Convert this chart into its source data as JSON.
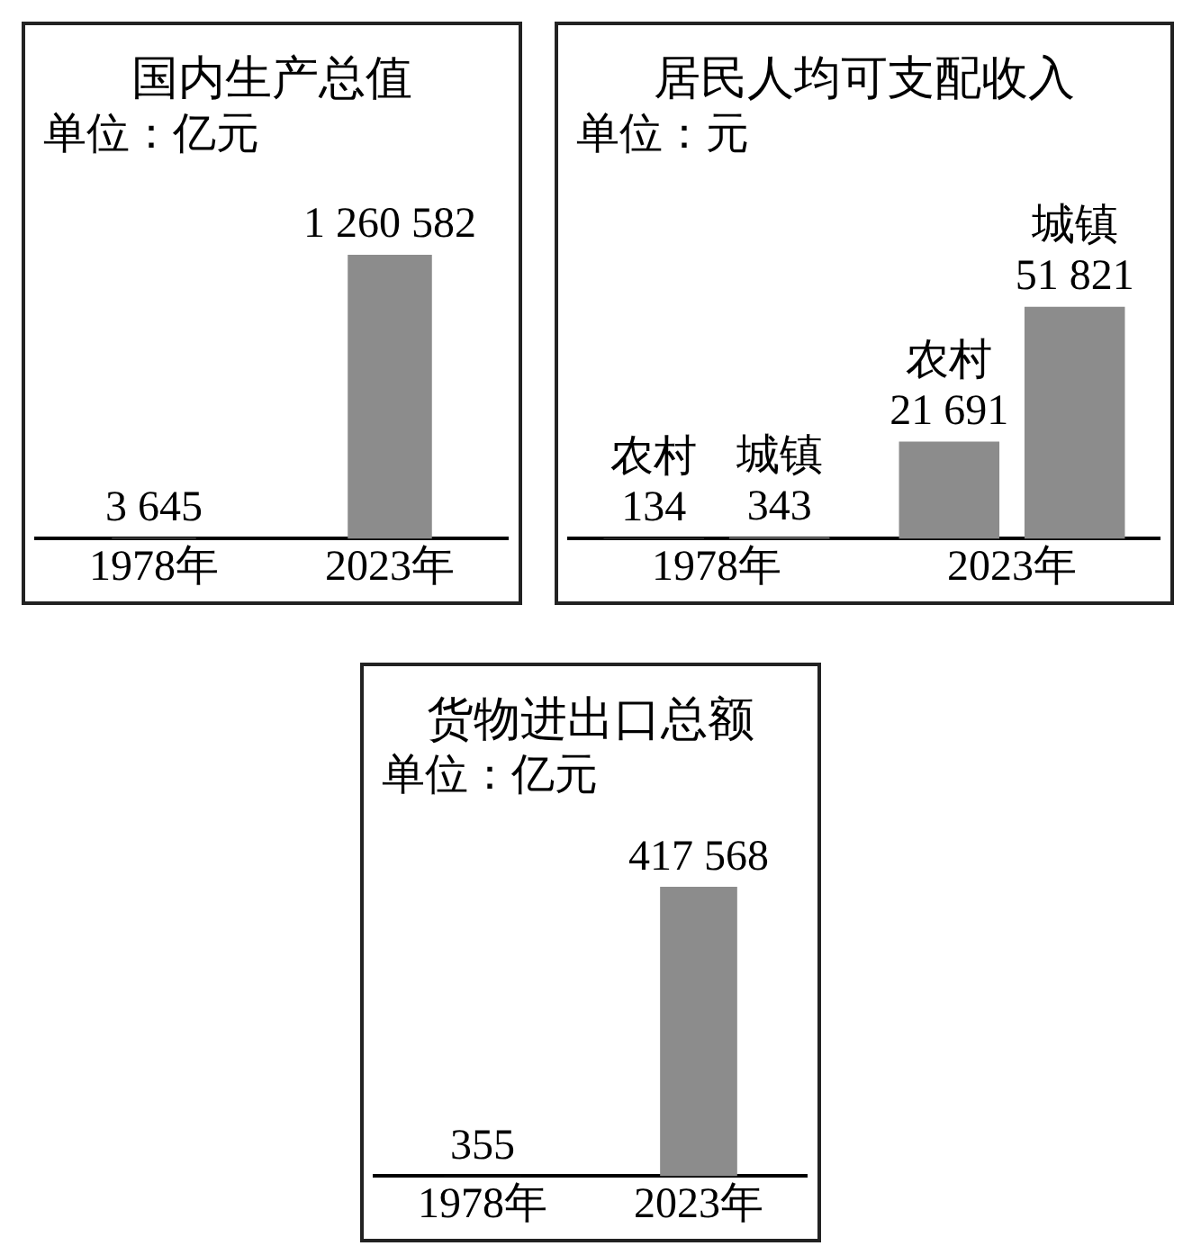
{
  "chart_data": [
    {
      "type": "bar",
      "title": "国内生产总值",
      "subtitle": "单位：亿元",
      "categories": [
        "1978年",
        "2023年"
      ],
      "values": [
        3645,
        1260582
      ],
      "value_labels": [
        "3 645",
        "1 260 582"
      ],
      "color": "#8c8c8c",
      "tick_labels": "x",
      "legend": false
    },
    {
      "type": "bar",
      "title": "居民人均可支配收入",
      "subtitle": "单位：元",
      "categories": [
        "1978年",
        "2023年"
      ],
      "series": [
        {
          "name": "农村",
          "color": "#8c8c8c",
          "values": [
            134,
            21691
          ],
          "value_labels": [
            "134",
            "21 691"
          ]
        },
        {
          "name": "城镇",
          "color": "#8c8c8c",
          "values": [
            343,
            51821
          ],
          "value_labels": [
            "343",
            "51 821"
          ]
        }
      ],
      "tick_labels": "x",
      "legend": false
    },
    {
      "type": "bar",
      "title": "货物进出口总额",
      "subtitle": "单位：亿元",
      "categories": [
        "1978年",
        "2023年"
      ],
      "values": [
        355,
        417568
      ],
      "value_labels": [
        "355",
        "417 568"
      ],
      "color": "#8c8c8c",
      "tick_labels": "x",
      "legend": false
    }
  ]
}
